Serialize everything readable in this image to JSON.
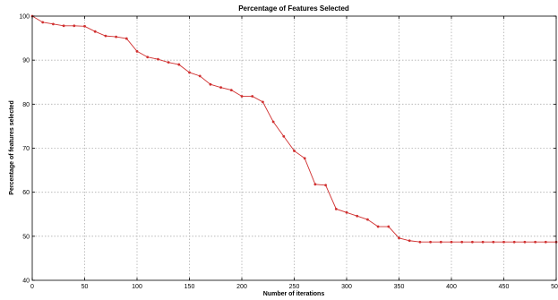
{
  "chart_data": {
    "type": "line",
    "title": "Percentage of Features Selected",
    "xlabel": "Number of iterations",
    "ylabel": "Percentage of features selected",
    "xlim": [
      0,
      500
    ],
    "ylim": [
      40,
      100
    ],
    "xticks": [
      0,
      50,
      100,
      150,
      200,
      250,
      300,
      350,
      400,
      450,
      500
    ],
    "yticks": [
      40,
      50,
      60,
      70,
      80,
      90,
      100
    ],
    "grid": true,
    "series": [
      {
        "color": "#d03030",
        "x": [
          0,
          10,
          20,
          30,
          40,
          50,
          60,
          70,
          80,
          90,
          100,
          110,
          120,
          130,
          140,
          150,
          160,
          170,
          180,
          190,
          200,
          210,
          220,
          230,
          240,
          250,
          260,
          270,
          280,
          290,
          300,
          310,
          320,
          330,
          340,
          350,
          360,
          370,
          380,
          390,
          400,
          410,
          420,
          430,
          440,
          450,
          460,
          470,
          480,
          490,
          500
        ],
        "y": [
          100,
          98.6,
          98.2,
          97.8,
          97.8,
          97.7,
          96.5,
          95.5,
          95.3,
          94.9,
          92.0,
          90.7,
          90.2,
          89.5,
          89.0,
          87.2,
          86.4,
          84.5,
          83.8,
          83.2,
          81.8,
          81.8,
          80.5,
          76.0,
          72.7,
          69.4,
          67.7,
          61.8,
          61.6,
          56.2,
          55.4,
          54.6,
          53.8,
          52.2,
          52.2,
          49.6,
          49.0,
          48.7,
          48.7,
          48.7,
          48.7,
          48.7,
          48.7,
          48.7,
          48.7,
          48.7,
          48.7,
          48.7,
          48.7,
          48.7,
          48.7
        ]
      }
    ]
  }
}
